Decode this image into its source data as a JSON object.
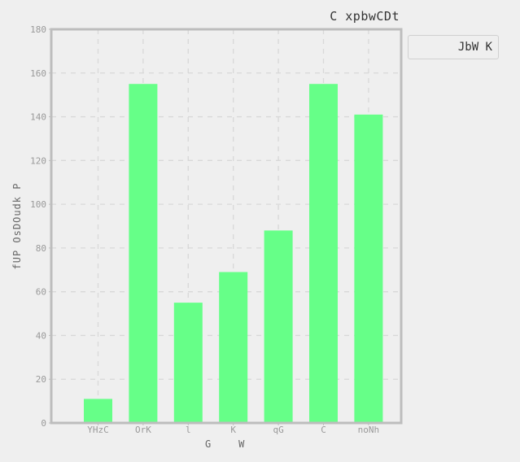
{
  "chart_data": {
    "type": "bar",
    "title": "C xpbwCDt",
    "xlabel": "G    W",
    "ylabel": "fUP OsDOudk P",
    "categories": [
      "YHzC",
      "OrK",
      "l",
      "K",
      "qG",
      "C",
      "noNh"
    ],
    "series": [
      {
        "name": "JbW K",
        "values": [
          11,
          155,
          55,
          69,
          88,
          155,
          141
        ]
      }
    ],
    "ylim": [
      0,
      180
    ],
    "yticks": [
      0,
      20,
      40,
      60,
      80,
      100,
      120,
      140,
      160,
      180
    ],
    "grid": true,
    "legend_position": "outside-top-right",
    "colors": {
      "bar": "#66ff88",
      "grid": "#d8d8d8",
      "axis": "#bdbdbd",
      "tick_text": "#999999",
      "background": "#efefef"
    }
  }
}
